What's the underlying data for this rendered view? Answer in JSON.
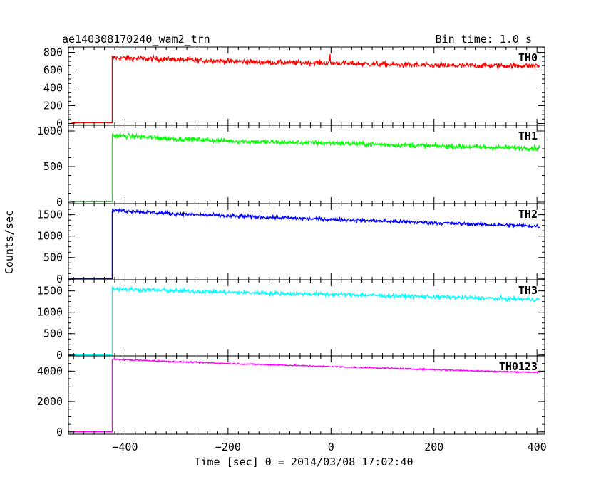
{
  "chart_data": {
    "type": "line",
    "title": "ae140308170240_wam2_trn",
    "bin_time": "Bin time: 1.0 s",
    "xlabel": "Time [sec] 0 = 2014/03/08 17:02:40",
    "ylabel": "Counts/sec",
    "xlim": [
      -510,
      415
    ],
    "x_ticks": [
      -400,
      -200,
      0,
      200,
      400
    ],
    "x_tick_labels": [
      "−400",
      "−200",
      "0",
      "200",
      "400"
    ],
    "onset_x": -425,
    "grid": false,
    "panels": [
      {
        "name": "TH0",
        "color": "#ff0000",
        "ylim": [
          -20,
          860
        ],
        "y_ticks": [
          0,
          200,
          400,
          600,
          800
        ],
        "y_tick_labels": [
          "0",
          "200",
          "400",
          "600",
          "800"
        ],
        "baseline": 10,
        "level_x": [
          -425,
          -400,
          -300,
          -200,
          -100,
          0,
          100,
          200,
          300,
          400
        ],
        "level_y": [
          740,
          735,
          720,
          700,
          685,
          680,
          665,
          650,
          650,
          650
        ],
        "noise": 30,
        "spikes": [
          [
            -2,
            780
          ]
        ]
      },
      {
        "name": "TH1",
        "color": "#00ff00",
        "ylim": [
          -20,
          1080
        ],
        "y_ticks": [
          0,
          500,
          1000
        ],
        "y_tick_labels": [
          "0",
          "500",
          "1000"
        ],
        "baseline": 5,
        "level_x": [
          -425,
          -400,
          -300,
          -200,
          -100,
          0,
          100,
          200,
          300,
          400
        ],
        "level_y": [
          940,
          930,
          890,
          860,
          840,
          830,
          810,
          790,
          770,
          760
        ],
        "noise": 35,
        "spikes": []
      },
      {
        "name": "TH2",
        "color": "#0000ff",
        "ylim": [
          -20,
          1760
        ],
        "y_ticks": [
          0,
          500,
          1000,
          1500
        ],
        "y_tick_labels": [
          "0",
          "500",
          "1000",
          "1500"
        ],
        "baseline": 5,
        "level_x": [
          -425,
          -400,
          -300,
          -200,
          -100,
          0,
          100,
          200,
          300,
          400
        ],
        "level_y": [
          1610,
          1590,
          1520,
          1470,
          1430,
          1390,
          1350,
          1310,
          1270,
          1230
        ],
        "noise": 45,
        "spikes": []
      },
      {
        "name": "TH3",
        "color": "#00ffff",
        "ylim": [
          -20,
          1760
        ],
        "y_ticks": [
          0,
          500,
          1000,
          1500
        ],
        "y_tick_labels": [
          "0",
          "500",
          "1000",
          "1500"
        ],
        "baseline": 5,
        "level_x": [
          -425,
          -400,
          -300,
          -200,
          -100,
          0,
          100,
          200,
          300,
          400
        ],
        "level_y": [
          1560,
          1540,
          1500,
          1470,
          1440,
          1420,
          1390,
          1360,
          1330,
          1300
        ],
        "noise": 50,
        "spikes": []
      },
      {
        "name": "TH0123",
        "color": "#ff00ff",
        "ylim": [
          -150,
          5000
        ],
        "y_ticks": [
          0,
          2000,
          4000
        ],
        "y_tick_labels": [
          "0",
          "2000",
          "4000"
        ],
        "baseline": 10,
        "level_x": [
          -425,
          -400,
          -300,
          -200,
          -100,
          0,
          100,
          200,
          300,
          400
        ],
        "level_y": [
          4780,
          4750,
          4620,
          4500,
          4400,
          4300,
          4200,
          4100,
          4000,
          3920
        ],
        "noise": 45,
        "spikes": []
      }
    ]
  }
}
